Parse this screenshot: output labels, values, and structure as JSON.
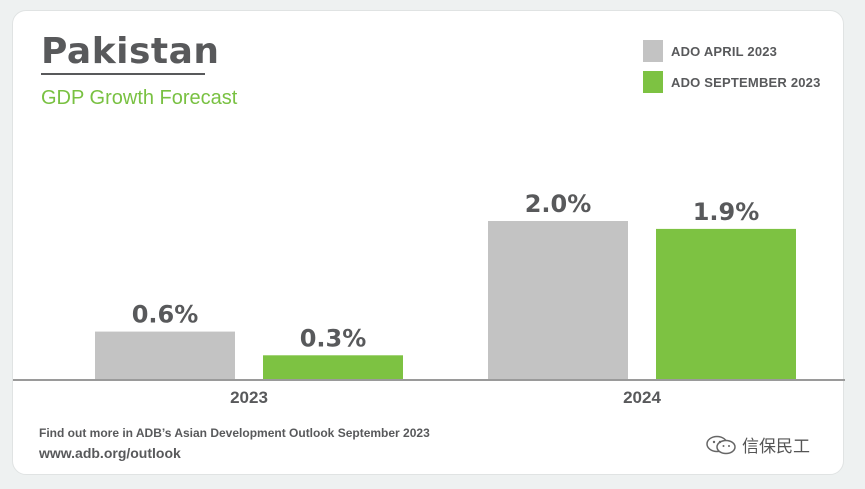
{
  "header": {
    "title": "Pakistan",
    "subtitle": "GDP Growth Forecast"
  },
  "legend": [
    {
      "label": "ADO APRIL 2023",
      "color": "#c3c3c3"
    },
    {
      "label": "ADO SEPTEMBER 2023",
      "color": "#7dc242"
    }
  ],
  "chart_data": {
    "type": "bar",
    "title": "Pakistan",
    "subtitle": "GDP Growth Forecast",
    "categories": [
      "2023",
      "2024"
    ],
    "series": [
      {
        "name": "ADO APRIL 2023",
        "values": [
          0.6,
          2.0
        ],
        "labels": [
          "0.6%",
          "2.0%"
        ],
        "color": "#c3c3c3"
      },
      {
        "name": "ADO SEPTEMBER 2023",
        "values": [
          0.3,
          1.9
        ],
        "labels": [
          "0.3%",
          "1.9%"
        ],
        "color": "#7dc242"
      }
    ],
    "unit": "%",
    "ylim": [
      0,
      2.0
    ],
    "grid": false,
    "legend_position": "top-right"
  },
  "footer": {
    "note": "Find out more in ADB’s Asian Development Outlook September 2023",
    "url": "www.adb.org/outlook"
  },
  "watermark": {
    "text": "信保民工"
  }
}
